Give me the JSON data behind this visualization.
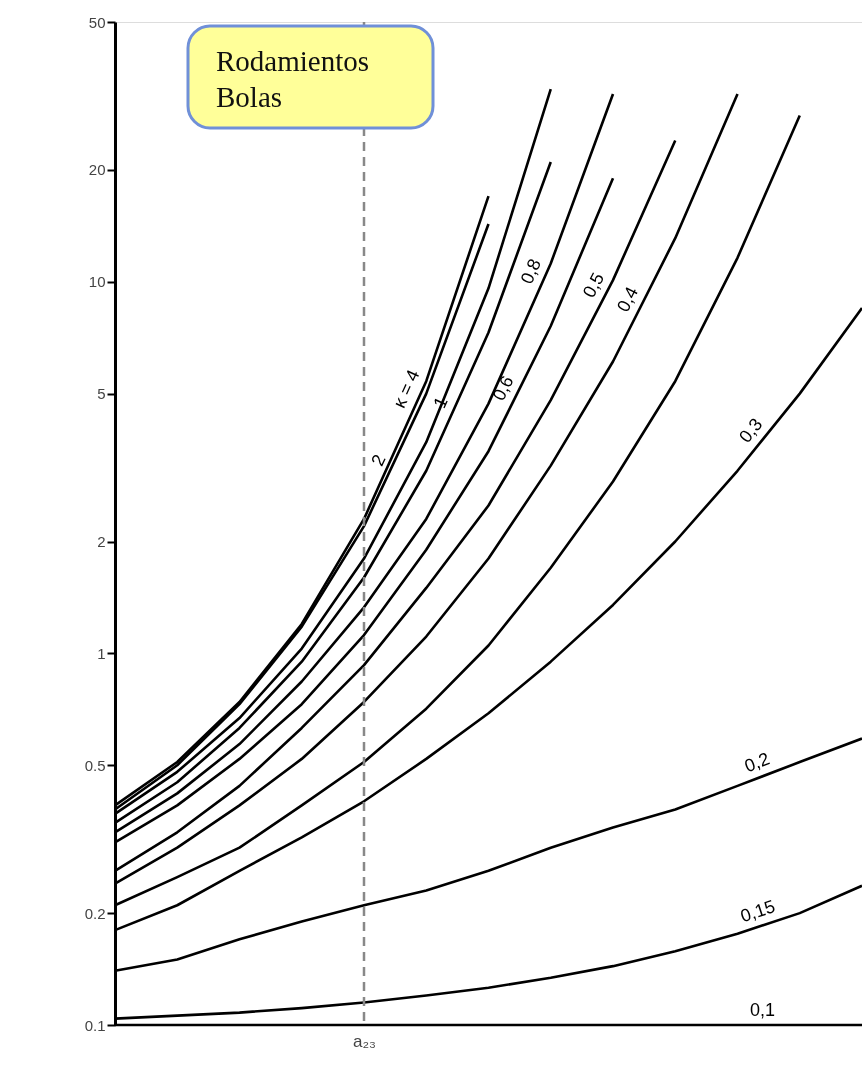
{
  "chart_data": {
    "type": "line",
    "categories": [
      null,
      null,
      null,
      null,
      "a₂₃",
      null,
      null,
      null,
      null,
      null,
      null,
      null,
      null
    ],
    "log": "y",
    "ylim": [
      0.1,
      50
    ],
    "yticks": [
      50,
      20,
      10,
      5,
      2,
      1,
      0.5,
      0.2,
      0.1
    ],
    "annotations": [
      "Rodamientos\nBolas"
    ],
    "ref_lines": [
      {
        "axis": "x",
        "value": "a₂₃",
        "color": "#888888",
        "line_style": "dashed"
      }
    ],
    "series": [
      {
        "name": "κ = 4",
        "color": "#000000",
        "values": [
          0.39,
          0.51,
          0.74,
          1.2,
          2.3,
          5.4,
          17,
          null,
          null,
          null,
          null,
          null,
          null
        ]
      },
      {
        "name": "2",
        "color": "#000000",
        "values": [
          0.38,
          0.5,
          0.73,
          1.18,
          2.2,
          5.0,
          14.3,
          null,
          null,
          null,
          null,
          null,
          null
        ]
      },
      {
        "color": "#000000",
        "values": [
          0.37,
          0.48,
          0.67,
          1.03,
          1.8,
          3.7,
          9.6,
          33,
          null,
          null,
          null,
          null,
          null
        ]
      },
      {
        "name": "1",
        "color": "#000000",
        "values": [
          0.35,
          0.45,
          0.63,
          0.95,
          1.6,
          3.1,
          7.3,
          21,
          null,
          null,
          null,
          null,
          null
        ]
      },
      {
        "name": "0,8",
        "color": "#000000",
        "values": [
          0.33,
          0.42,
          0.57,
          0.84,
          1.33,
          2.3,
          4.7,
          11.2,
          32,
          null,
          null,
          null,
          null
        ]
      },
      {
        "name": "0,6",
        "color": "#000000",
        "values": [
          0.31,
          0.39,
          0.52,
          0.73,
          1.12,
          1.9,
          3.5,
          7.6,
          19,
          null,
          null,
          null,
          null
        ]
      },
      {
        "name": "0,5",
        "color": "#000000",
        "values": [
          0.26,
          0.33,
          0.44,
          0.63,
          0.93,
          1.5,
          2.5,
          4.8,
          10.1,
          24,
          null,
          null,
          null
        ]
      },
      {
        "name": "0,4",
        "color": "#000000",
        "values": [
          0.24,
          0.3,
          0.39,
          0.52,
          0.74,
          1.11,
          1.8,
          3.2,
          6.1,
          13.1,
          32,
          null,
          null
        ]
      },
      {
        "color": "#000000",
        "values": [
          0.21,
          0.25,
          0.3,
          0.39,
          0.51,
          0.71,
          1.05,
          1.7,
          2.9,
          5.4,
          11.6,
          28,
          null
        ]
      },
      {
        "name": "0,3",
        "color": "#000000",
        "values": [
          0.18,
          0.21,
          0.26,
          0.32,
          0.4,
          0.52,
          0.69,
          0.95,
          1.35,
          2.0,
          3.1,
          5.0,
          8.5
        ]
      },
      {
        "name": "0,2",
        "color": "#000000",
        "values": [
          0.14,
          0.15,
          0.17,
          0.19,
          0.21,
          0.23,
          0.26,
          0.3,
          0.34,
          0.38,
          0.44,
          0.51,
          0.59
        ]
      },
      {
        "name": "0,15",
        "color": "#000000",
        "values": [
          0.104,
          0.106,
          0.108,
          0.111,
          0.115,
          0.12,
          0.126,
          0.134,
          0.144,
          0.158,
          0.176,
          0.2,
          0.237
        ]
      },
      {
        "name": "0,1",
        "color": "#000000",
        "values": [
          0.1,
          0.1,
          0.1,
          0.1,
          0.1,
          0.1,
          0.1,
          0.1,
          0.1,
          0.1,
          0.1,
          0.1,
          0.1
        ]
      }
    ]
  }
}
